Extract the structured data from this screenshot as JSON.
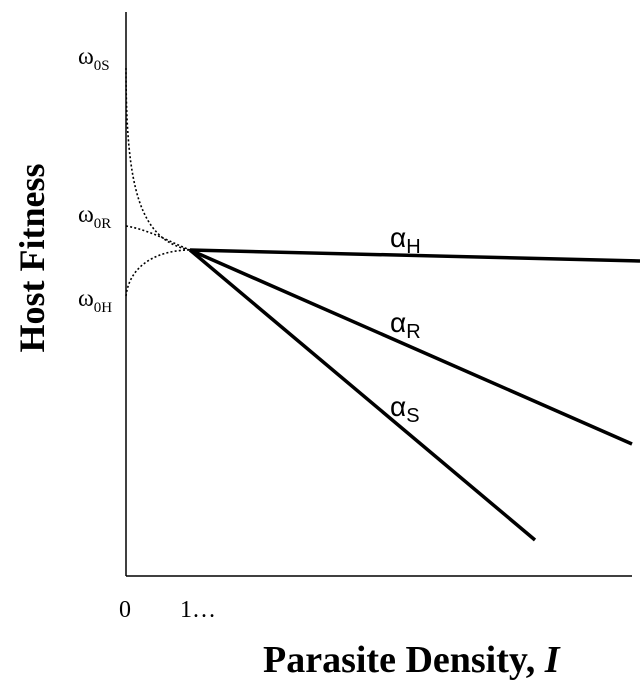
{
  "axes": {
    "y_label": "Host Fitness",
    "x_label_main": "Parasite Density, ",
    "x_label_var": "I",
    "x_tick_0": "0",
    "x_tick_1": "1…"
  },
  "y_axis_labels": {
    "omega_0S": {
      "base": "ω",
      "sub": "0S"
    },
    "omega_0R": {
      "base": "ω",
      "sub": "0R"
    },
    "omega_0H": {
      "base": "ω",
      "sub": "0H"
    }
  },
  "line_labels": {
    "alpha_H": {
      "base": "α",
      "sub": "H"
    },
    "alpha_R": {
      "base": "α",
      "sub": "R"
    },
    "alpha_S": {
      "base": "α",
      "sub": "S"
    }
  },
  "colors": {
    "ink": "#000000",
    "background": "#ffffff"
  }
}
